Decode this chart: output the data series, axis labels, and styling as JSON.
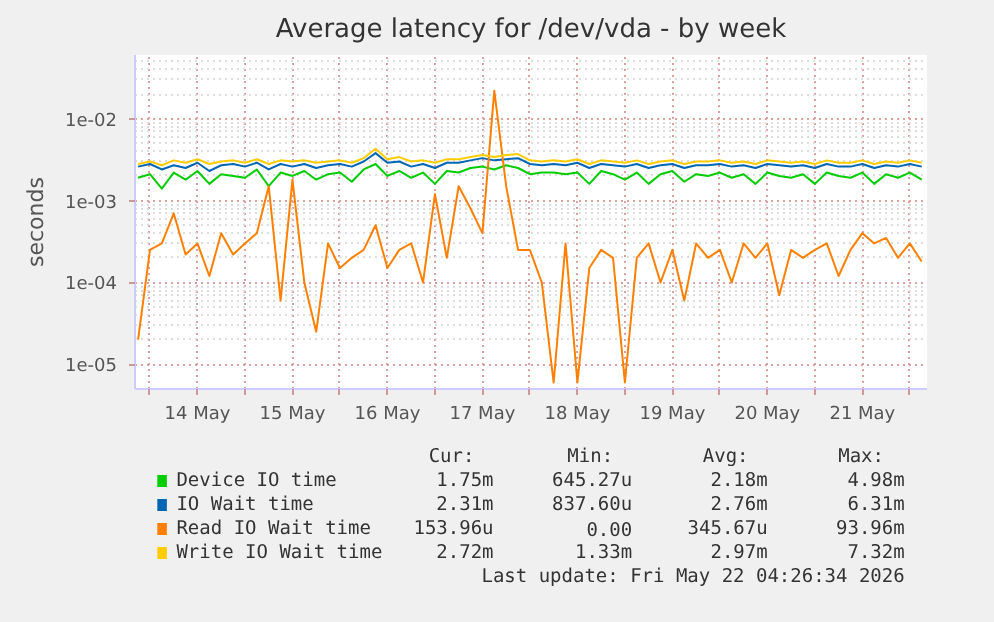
{
  "chart_data": {
    "type": "line",
    "title": "Average latency for /dev/vda - by week",
    "ylabel": "seconds",
    "log": "y",
    "grid": true,
    "legend": "bottom",
    "xlim": [
      "2026-05-13T20:13",
      "2026-05-22T04:20"
    ],
    "xticks": [
      {
        "value": "2026-05-14T00:00",
        "label": null
      },
      {
        "value": "2026-05-14T12:00",
        "label": "14 May"
      },
      {
        "value": "2026-05-15T00:00",
        "label": null
      },
      {
        "value": "2026-05-15T12:00",
        "label": "15 May"
      },
      {
        "value": "2026-05-16T00:00",
        "label": null
      },
      {
        "value": "2026-05-16T12:00",
        "label": "16 May"
      },
      {
        "value": "2026-05-17T00:00",
        "label": null
      },
      {
        "value": "2026-05-17T12:00",
        "label": "17 May"
      },
      {
        "value": "2026-05-18T00:00",
        "label": null
      },
      {
        "value": "2026-05-18T12:00",
        "label": "18 May"
      },
      {
        "value": "2026-05-19T00:00",
        "label": null
      },
      {
        "value": "2026-05-19T12:00",
        "label": "19 May"
      },
      {
        "value": "2026-05-20T00:00",
        "label": null
      },
      {
        "value": "2026-05-20T12:00",
        "label": "20 May"
      },
      {
        "value": "2026-05-21T00:00",
        "label": null
      },
      {
        "value": "2026-05-21T12:00",
        "label": "21 May"
      },
      {
        "value": "2026-05-22T00:00",
        "label": null
      }
    ],
    "ylim": [
      5e-06,
      0.06
    ],
    "yticks": [
      {
        "value": 1e-05,
        "label": "1e-05"
      },
      {
        "value": 0.0001,
        "label": "1e-04"
      },
      {
        "value": 0.001,
        "label": "1e-03"
      },
      {
        "value": 0.01,
        "label": "1e-02"
      }
    ],
    "x": [
      "2026-05-13T21:00",
      "2026-05-14T00:00",
      "2026-05-14T03:00",
      "2026-05-14T06:00",
      "2026-05-14T09:00",
      "2026-05-14T12:00",
      "2026-05-14T15:00",
      "2026-05-14T18:00",
      "2026-05-14T21:00",
      "2026-05-15T00:00",
      "2026-05-15T03:00",
      "2026-05-15T06:00",
      "2026-05-15T09:00",
      "2026-05-15T12:00",
      "2026-05-15T15:00",
      "2026-05-15T18:00",
      "2026-05-15T21:00",
      "2026-05-16T00:00",
      "2026-05-16T03:00",
      "2026-05-16T06:00",
      "2026-05-16T09:00",
      "2026-05-16T12:00",
      "2026-05-16T15:00",
      "2026-05-16T18:00",
      "2026-05-16T21:00",
      "2026-05-17T00:00",
      "2026-05-17T03:00",
      "2026-05-17T06:00",
      "2026-05-17T09:00",
      "2026-05-17T12:00",
      "2026-05-17T15:00",
      "2026-05-17T18:00",
      "2026-05-17T21:00",
      "2026-05-18T00:00",
      "2026-05-18T03:00",
      "2026-05-18T06:00",
      "2026-05-18T09:00",
      "2026-05-18T12:00",
      "2026-05-18T15:00",
      "2026-05-18T18:00",
      "2026-05-18T21:00",
      "2026-05-19T00:00",
      "2026-05-19T03:00",
      "2026-05-19T06:00",
      "2026-05-19T09:00",
      "2026-05-19T12:00",
      "2026-05-19T15:00",
      "2026-05-19T18:00",
      "2026-05-19T21:00",
      "2026-05-20T00:00",
      "2026-05-20T03:00",
      "2026-05-20T06:00",
      "2026-05-20T09:00",
      "2026-05-20T12:00",
      "2026-05-20T15:00",
      "2026-05-20T18:00",
      "2026-05-20T21:00",
      "2026-05-21T00:00",
      "2026-05-21T03:00",
      "2026-05-21T06:00",
      "2026-05-21T09:00",
      "2026-05-21T12:00",
      "2026-05-21T15:00",
      "2026-05-21T18:00",
      "2026-05-21T21:00",
      "2026-05-22T00:00",
      "2026-05-22T03:00"
    ],
    "series": [
      {
        "name": "Device IO time",
        "color": "#00cc00",
        "values": [
          0.0019,
          0.0021,
          0.0014,
          0.0022,
          0.0018,
          0.0023,
          0.0016,
          0.0021,
          0.002,
          0.0019,
          0.0024,
          0.0015,
          0.0022,
          0.002,
          0.0023,
          0.0018,
          0.0021,
          0.0022,
          0.0017,
          0.0024,
          0.0028,
          0.002,
          0.0023,
          0.0019,
          0.0022,
          0.0016,
          0.0023,
          0.0022,
          0.0025,
          0.0026,
          0.0024,
          0.0027,
          0.0025,
          0.0021,
          0.0022,
          0.0022,
          0.0021,
          0.0022,
          0.0016,
          0.0023,
          0.0021,
          0.0018,
          0.0022,
          0.0016,
          0.0021,
          0.0023,
          0.0017,
          0.0021,
          0.002,
          0.0022,
          0.0019,
          0.0021,
          0.0016,
          0.0022,
          0.002,
          0.0019,
          0.0021,
          0.0016,
          0.0022,
          0.002,
          0.0019,
          0.0022,
          0.0016,
          0.0021,
          0.0019,
          0.0022,
          0.0018
        ]
      },
      {
        "name": "IO Wait time",
        "color": "#0066b3",
        "values": [
          0.0026,
          0.0028,
          0.0024,
          0.0027,
          0.0025,
          0.0029,
          0.0023,
          0.0027,
          0.0028,
          0.0026,
          0.0029,
          0.0024,
          0.0028,
          0.0026,
          0.0028,
          0.0025,
          0.0027,
          0.0028,
          0.0026,
          0.003,
          0.0038,
          0.0029,
          0.003,
          0.0026,
          0.0028,
          0.0025,
          0.0029,
          0.0029,
          0.0031,
          0.0033,
          0.0031,
          0.0032,
          0.0033,
          0.0028,
          0.0027,
          0.0028,
          0.0027,
          0.0029,
          0.0025,
          0.0028,
          0.0027,
          0.0026,
          0.0028,
          0.0025,
          0.0027,
          0.0028,
          0.0025,
          0.0027,
          0.0027,
          0.0028,
          0.0026,
          0.0027,
          0.0025,
          0.0028,
          0.0027,
          0.0026,
          0.0027,
          0.0025,
          0.0028,
          0.0026,
          0.0026,
          0.0028,
          0.0025,
          0.0027,
          0.0026,
          0.0028,
          0.0026
        ]
      },
      {
        "name": "Read IO Wait time",
        "color": "#ff8000",
        "values": [
          2e-05,
          0.00025,
          0.0003,
          0.0007,
          0.00022,
          0.0003,
          0.00012,
          0.0004,
          0.00022,
          0.0003,
          0.0004,
          0.0015,
          6e-05,
          0.0018,
          0.0001,
          2.5e-05,
          0.0003,
          0.00015,
          0.0002,
          0.00025,
          0.0005,
          0.00015,
          0.00025,
          0.0003,
          0.0001,
          0.0012,
          0.0002,
          0.0015,
          0.0008,
          0.0004,
          0.022,
          0.0015,
          0.00025,
          0.00025,
          0.0001,
          6e-06,
          0.0003,
          6e-06,
          0.00015,
          0.00025,
          0.0002,
          6e-06,
          0.0002,
          0.0003,
          0.0001,
          0.00025,
          6e-05,
          0.0003,
          0.0002,
          0.00025,
          0.0001,
          0.0003,
          0.0002,
          0.0003,
          7e-05,
          0.00025,
          0.0002,
          0.00025,
          0.0003,
          0.00012,
          0.00025,
          0.0004,
          0.0003,
          0.00035,
          0.0002,
          0.0003,
          0.00018
        ]
      },
      {
        "name": "Write IO Wait time",
        "color": "#ffcc00",
        "values": [
          0.0028,
          0.003,
          0.0027,
          0.0031,
          0.0029,
          0.0032,
          0.0028,
          0.003,
          0.0031,
          0.0029,
          0.0032,
          0.0028,
          0.0031,
          0.003,
          0.0031,
          0.0029,
          0.003,
          0.0031,
          0.0029,
          0.0033,
          0.0043,
          0.0032,
          0.0034,
          0.003,
          0.0031,
          0.0029,
          0.0032,
          0.0032,
          0.0034,
          0.0036,
          0.0034,
          0.0036,
          0.0037,
          0.0031,
          0.003,
          0.0031,
          0.003,
          0.0032,
          0.0028,
          0.0031,
          0.003,
          0.0029,
          0.0031,
          0.0028,
          0.003,
          0.0031,
          0.0028,
          0.003,
          0.003,
          0.0031,
          0.0029,
          0.003,
          0.0028,
          0.0031,
          0.003,
          0.0029,
          0.003,
          0.0028,
          0.0031,
          0.0029,
          0.0029,
          0.0031,
          0.0028,
          0.003,
          0.0029,
          0.0031,
          0.0029
        ]
      }
    ],
    "annotations": [
      "Cur:",
      "Min:",
      "Avg:",
      "Max:",
      "1.75m",
      "645.27u",
      "2.18m",
      "4.98m",
      "2.31m",
      "837.60u",
      "2.76m",
      "6.31m",
      "153.96u",
      "0.00",
      "345.67u",
      "93.96m",
      "2.72m",
      "1.33m",
      "2.97m",
      "7.32m",
      "Last update: Fri May 22 04:26:34 2026"
    ]
  }
}
